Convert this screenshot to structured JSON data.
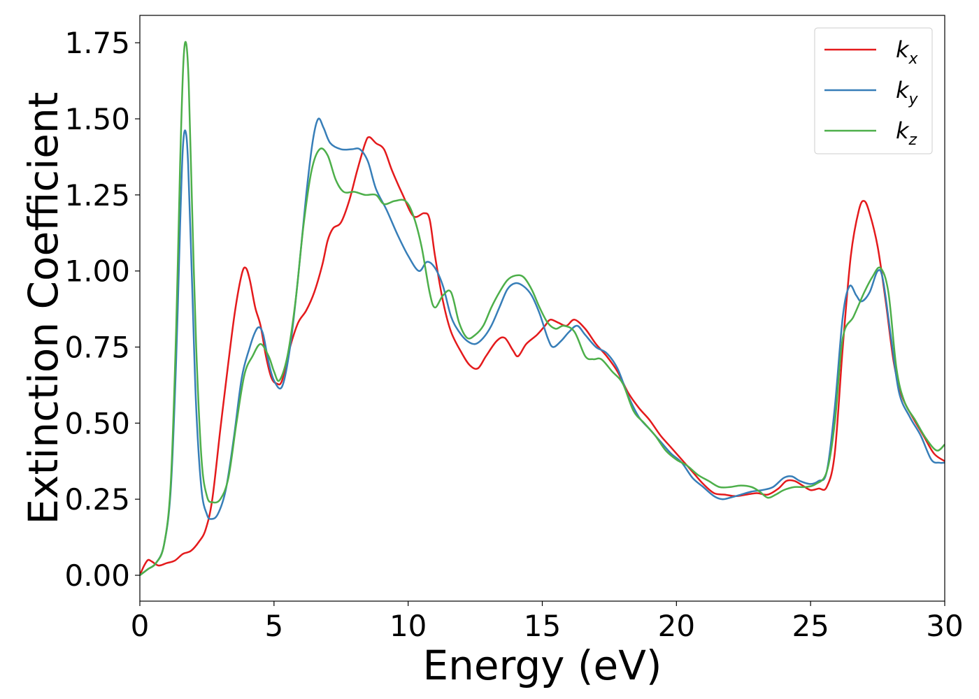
{
  "chart_data": {
    "type": "line",
    "xlabel": "Energy (eV)",
    "ylabel": "Extinction Coefficient",
    "xlim": [
      0,
      30
    ],
    "ylim": [
      -0.085,
      1.84
    ],
    "xticks": [
      0,
      5,
      10,
      15,
      20,
      25,
      30
    ],
    "xtick_labels": [
      "0",
      "5",
      "10",
      "15",
      "20",
      "25",
      "30"
    ],
    "yticks": [
      0.0,
      0.25,
      0.5,
      0.75,
      1.0,
      1.25,
      1.5,
      1.75
    ],
    "ytick_labels": [
      "0.00",
      "0.25",
      "0.50",
      "0.75",
      "1.00",
      "1.25",
      "1.50",
      "1.75"
    ],
    "grid": false,
    "legend_position": "top-right",
    "series": [
      {
        "name": "k_x",
        "label_base": "k",
        "label_sub": "x",
        "color": "#e41a1c",
        "points": [
          [
            0,
            0
          ],
          [
            0.15,
            0.03
          ],
          [
            0.3,
            0.05
          ],
          [
            0.45,
            0.045
          ],
          [
            0.7,
            0.032
          ],
          [
            1.0,
            0.04
          ],
          [
            1.3,
            0.048
          ],
          [
            1.6,
            0.07
          ],
          [
            1.9,
            0.08
          ],
          [
            2.2,
            0.11
          ],
          [
            2.45,
            0.15
          ],
          [
            2.7,
            0.25
          ],
          [
            3.0,
            0.48
          ],
          [
            3.3,
            0.7
          ],
          [
            3.55,
            0.87
          ],
          [
            3.8,
            0.99
          ],
          [
            3.95,
            1.01
          ],
          [
            4.1,
            0.97
          ],
          [
            4.3,
            0.88
          ],
          [
            4.5,
            0.82
          ],
          [
            4.7,
            0.72
          ],
          [
            4.9,
            0.65
          ],
          [
            5.1,
            0.63
          ],
          [
            5.3,
            0.64
          ],
          [
            5.6,
            0.75
          ],
          [
            5.9,
            0.83
          ],
          [
            6.2,
            0.87
          ],
          [
            6.5,
            0.93
          ],
          [
            6.8,
            1.02
          ],
          [
            7.0,
            1.1
          ],
          [
            7.2,
            1.14
          ],
          [
            7.5,
            1.16
          ],
          [
            7.8,
            1.23
          ],
          [
            8.1,
            1.33
          ],
          [
            8.4,
            1.42
          ],
          [
            8.55,
            1.44
          ],
          [
            8.8,
            1.42
          ],
          [
            9.1,
            1.4
          ],
          [
            9.4,
            1.33
          ],
          [
            9.8,
            1.25
          ],
          [
            10.2,
            1.18
          ],
          [
            10.6,
            1.19
          ],
          [
            10.8,
            1.17
          ],
          [
            11.0,
            1.05
          ],
          [
            11.3,
            0.9
          ],
          [
            11.6,
            0.8
          ],
          [
            12.0,
            0.73
          ],
          [
            12.3,
            0.69
          ],
          [
            12.6,
            0.68
          ],
          [
            12.9,
            0.72
          ],
          [
            13.3,
            0.77
          ],
          [
            13.6,
            0.78
          ],
          [
            13.9,
            0.74
          ],
          [
            14.1,
            0.72
          ],
          [
            14.4,
            0.76
          ],
          [
            14.8,
            0.79
          ],
          [
            15.1,
            0.82
          ],
          [
            15.3,
            0.84
          ],
          [
            15.6,
            0.83
          ],
          [
            15.9,
            0.82
          ],
          [
            16.2,
            0.84
          ],
          [
            16.6,
            0.81
          ],
          [
            17.0,
            0.76
          ],
          [
            17.4,
            0.72
          ],
          [
            17.8,
            0.67
          ],
          [
            18.2,
            0.6
          ],
          [
            18.6,
            0.55
          ],
          [
            19.0,
            0.51
          ],
          [
            19.4,
            0.46
          ],
          [
            19.8,
            0.42
          ],
          [
            20.2,
            0.38
          ],
          [
            20.6,
            0.34
          ],
          [
            21.0,
            0.3
          ],
          [
            21.4,
            0.27
          ],
          [
            21.8,
            0.265
          ],
          [
            22.2,
            0.26
          ],
          [
            22.6,
            0.265
          ],
          [
            23.0,
            0.27
          ],
          [
            23.4,
            0.265
          ],
          [
            23.8,
            0.285
          ],
          [
            24.1,
            0.31
          ],
          [
            24.4,
            0.31
          ],
          [
            24.7,
            0.295
          ],
          [
            25.0,
            0.28
          ],
          [
            25.3,
            0.285
          ],
          [
            25.6,
            0.29
          ],
          [
            25.9,
            0.4
          ],
          [
            26.2,
            0.75
          ],
          [
            26.5,
            1.05
          ],
          [
            26.8,
            1.2
          ],
          [
            27.0,
            1.23
          ],
          [
            27.2,
            1.19
          ],
          [
            27.5,
            1.08
          ],
          [
            27.8,
            0.9
          ],
          [
            28.1,
            0.7
          ],
          [
            28.4,
            0.59
          ],
          [
            28.8,
            0.52
          ],
          [
            29.2,
            0.46
          ],
          [
            29.6,
            0.4
          ],
          [
            30.0,
            0.375
          ]
        ]
      },
      {
        "name": "k_y",
        "label_base": "k",
        "label_sub": "y",
        "color": "#377eb8",
        "points": [
          [
            0,
            0
          ],
          [
            0.3,
            0.02
          ],
          [
            0.6,
            0.04
          ],
          [
            0.9,
            0.1
          ],
          [
            1.15,
            0.28
          ],
          [
            1.35,
            0.7
          ],
          [
            1.5,
            1.15
          ],
          [
            1.6,
            1.4
          ],
          [
            1.7,
            1.46
          ],
          [
            1.8,
            1.35
          ],
          [
            1.95,
            0.95
          ],
          [
            2.1,
            0.55
          ],
          [
            2.3,
            0.28
          ],
          [
            2.5,
            0.2
          ],
          [
            2.65,
            0.185
          ],
          [
            2.9,
            0.2
          ],
          [
            3.2,
            0.28
          ],
          [
            3.5,
            0.45
          ],
          [
            3.8,
            0.65
          ],
          [
            4.1,
            0.75
          ],
          [
            4.3,
            0.8
          ],
          [
            4.45,
            0.815
          ],
          [
            4.6,
            0.79
          ],
          [
            4.8,
            0.7
          ],
          [
            5.0,
            0.64
          ],
          [
            5.3,
            0.62
          ],
          [
            5.6,
            0.75
          ],
          [
            5.9,
            0.98
          ],
          [
            6.2,
            1.25
          ],
          [
            6.45,
            1.43
          ],
          [
            6.65,
            1.5
          ],
          [
            6.85,
            1.47
          ],
          [
            7.1,
            1.42
          ],
          [
            7.5,
            1.4
          ],
          [
            7.9,
            1.4
          ],
          [
            8.2,
            1.4
          ],
          [
            8.5,
            1.36
          ],
          [
            8.8,
            1.27
          ],
          [
            9.2,
            1.2
          ],
          [
            9.6,
            1.12
          ],
          [
            10.0,
            1.05
          ],
          [
            10.4,
            1.0
          ],
          [
            10.7,
            1.03
          ],
          [
            11.0,
            1.01
          ],
          [
            11.3,
            0.95
          ],
          [
            11.6,
            0.85
          ],
          [
            11.9,
            0.8
          ],
          [
            12.2,
            0.77
          ],
          [
            12.5,
            0.76
          ],
          [
            12.8,
            0.78
          ],
          [
            13.1,
            0.82
          ],
          [
            13.4,
            0.88
          ],
          [
            13.7,
            0.94
          ],
          [
            14.0,
            0.96
          ],
          [
            14.3,
            0.95
          ],
          [
            14.6,
            0.92
          ],
          [
            14.9,
            0.86
          ],
          [
            15.2,
            0.78
          ],
          [
            15.4,
            0.75
          ],
          [
            15.7,
            0.77
          ],
          [
            16.0,
            0.8
          ],
          [
            16.3,
            0.82
          ],
          [
            16.6,
            0.79
          ],
          [
            17.0,
            0.75
          ],
          [
            17.4,
            0.73
          ],
          [
            17.8,
            0.68
          ],
          [
            18.2,
            0.59
          ],
          [
            18.6,
            0.52
          ],
          [
            19.0,
            0.48
          ],
          [
            19.4,
            0.44
          ],
          [
            19.8,
            0.4
          ],
          [
            20.2,
            0.37
          ],
          [
            20.6,
            0.32
          ],
          [
            21.0,
            0.29
          ],
          [
            21.4,
            0.26
          ],
          [
            21.7,
            0.25
          ],
          [
            22.0,
            0.255
          ],
          [
            22.4,
            0.265
          ],
          [
            22.8,
            0.275
          ],
          [
            23.2,
            0.28
          ],
          [
            23.6,
            0.29
          ],
          [
            24.0,
            0.32
          ],
          [
            24.3,
            0.325
          ],
          [
            24.6,
            0.31
          ],
          [
            25.0,
            0.3
          ],
          [
            25.3,
            0.31
          ],
          [
            25.6,
            0.34
          ],
          [
            25.9,
            0.55
          ],
          [
            26.2,
            0.85
          ],
          [
            26.45,
            0.95
          ],
          [
            26.7,
            0.92
          ],
          [
            26.9,
            0.9
          ],
          [
            27.2,
            0.93
          ],
          [
            27.5,
            1.0
          ],
          [
            27.7,
            0.97
          ],
          [
            28.0,
            0.78
          ],
          [
            28.3,
            0.6
          ],
          [
            28.7,
            0.52
          ],
          [
            29.1,
            0.46
          ],
          [
            29.5,
            0.38
          ],
          [
            29.8,
            0.37
          ],
          [
            30.0,
            0.37
          ]
        ]
      },
      {
        "name": "k_z",
        "label_base": "k",
        "label_sub": "z",
        "color": "#4daf4a",
        "points": [
          [
            0,
            0
          ],
          [
            0.3,
            0.02
          ],
          [
            0.6,
            0.04
          ],
          [
            0.9,
            0.1
          ],
          [
            1.15,
            0.3
          ],
          [
            1.35,
            0.8
          ],
          [
            1.5,
            1.35
          ],
          [
            1.62,
            1.68
          ],
          [
            1.72,
            1.75
          ],
          [
            1.82,
            1.62
          ],
          [
            1.95,
            1.2
          ],
          [
            2.1,
            0.75
          ],
          [
            2.3,
            0.38
          ],
          [
            2.5,
            0.26
          ],
          [
            2.7,
            0.24
          ],
          [
            3.0,
            0.25
          ],
          [
            3.3,
            0.32
          ],
          [
            3.6,
            0.5
          ],
          [
            3.9,
            0.66
          ],
          [
            4.2,
            0.72
          ],
          [
            4.5,
            0.76
          ],
          [
            4.8,
            0.72
          ],
          [
            5.0,
            0.67
          ],
          [
            5.2,
            0.64
          ],
          [
            5.5,
            0.72
          ],
          [
            5.8,
            0.9
          ],
          [
            6.1,
            1.15
          ],
          [
            6.4,
            1.33
          ],
          [
            6.7,
            1.4
          ],
          [
            7.0,
            1.38
          ],
          [
            7.3,
            1.3
          ],
          [
            7.6,
            1.26
          ],
          [
            8.0,
            1.26
          ],
          [
            8.4,
            1.25
          ],
          [
            8.8,
            1.25
          ],
          [
            9.1,
            1.22
          ],
          [
            9.5,
            1.23
          ],
          [
            9.9,
            1.23
          ],
          [
            10.2,
            1.18
          ],
          [
            10.5,
            1.08
          ],
          [
            10.8,
            0.93
          ],
          [
            11.0,
            0.88
          ],
          [
            11.3,
            0.92
          ],
          [
            11.6,
            0.93
          ],
          [
            11.9,
            0.83
          ],
          [
            12.2,
            0.78
          ],
          [
            12.5,
            0.79
          ],
          [
            12.8,
            0.82
          ],
          [
            13.1,
            0.88
          ],
          [
            13.4,
            0.93
          ],
          [
            13.7,
            0.97
          ],
          [
            14.0,
            0.985
          ],
          [
            14.3,
            0.98
          ],
          [
            14.6,
            0.94
          ],
          [
            14.9,
            0.88
          ],
          [
            15.2,
            0.83
          ],
          [
            15.5,
            0.81
          ],
          [
            15.8,
            0.82
          ],
          [
            16.2,
            0.8
          ],
          [
            16.6,
            0.72
          ],
          [
            16.9,
            0.71
          ],
          [
            17.2,
            0.71
          ],
          [
            17.6,
            0.67
          ],
          [
            18.0,
            0.63
          ],
          [
            18.4,
            0.54
          ],
          [
            18.8,
            0.5
          ],
          [
            19.2,
            0.46
          ],
          [
            19.6,
            0.41
          ],
          [
            20.0,
            0.38
          ],
          [
            20.4,
            0.36
          ],
          [
            20.8,
            0.33
          ],
          [
            21.2,
            0.31
          ],
          [
            21.6,
            0.29
          ],
          [
            22.0,
            0.29
          ],
          [
            22.4,
            0.295
          ],
          [
            22.8,
            0.29
          ],
          [
            23.1,
            0.275
          ],
          [
            23.4,
            0.255
          ],
          [
            23.7,
            0.265
          ],
          [
            24.0,
            0.28
          ],
          [
            24.4,
            0.29
          ],
          [
            24.8,
            0.29
          ],
          [
            25.2,
            0.3
          ],
          [
            25.6,
            0.34
          ],
          [
            25.9,
            0.5
          ],
          [
            26.2,
            0.78
          ],
          [
            26.6,
            0.85
          ],
          [
            27.0,
            0.93
          ],
          [
            27.3,
            0.98
          ],
          [
            27.6,
            1.01
          ],
          [
            27.9,
            0.93
          ],
          [
            28.2,
            0.68
          ],
          [
            28.5,
            0.57
          ],
          [
            28.9,
            0.51
          ],
          [
            29.3,
            0.45
          ],
          [
            29.7,
            0.41
          ],
          [
            30.0,
            0.43
          ]
        ]
      }
    ]
  }
}
